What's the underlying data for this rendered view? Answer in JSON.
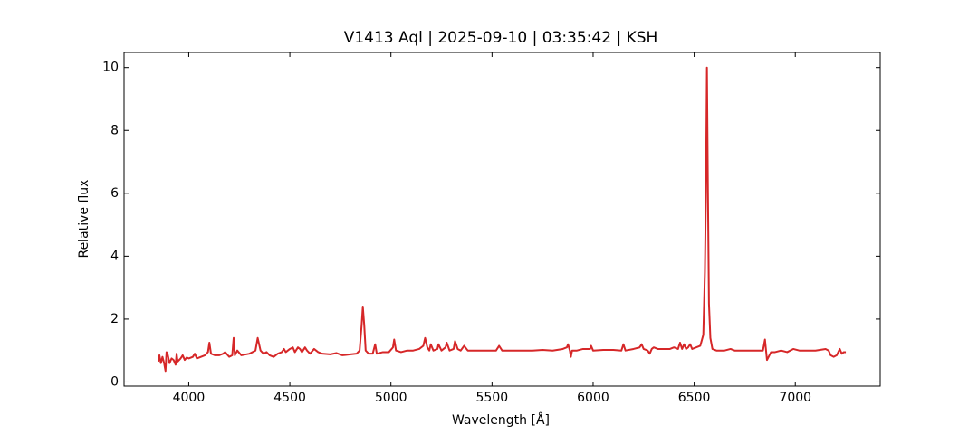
{
  "chart_data": {
    "type": "line",
    "title": "V1413 Aql | 2025-09-10 | 03:35:42 | KSH",
    "x_label": "Wavelength [Å]",
    "y_label": "Relative flux",
    "xlim": [
      3680,
      7420
    ],
    "ylim": [
      -0.13,
      10.48
    ],
    "xticks": [
      4000,
      4500,
      5000,
      5500,
      6000,
      6500,
      7000
    ],
    "yticks": [
      0,
      2,
      4,
      6,
      8,
      10
    ],
    "grid": false,
    "series": [
      {
        "color": "#d62728",
        "x": [
          3850,
          3855,
          3862,
          3870,
          3878,
          3885,
          3890,
          3895,
          3905,
          3915,
          3925,
          3935,
          3940,
          3945,
          3960,
          3970,
          3980,
          3990,
          4000,
          4020,
          4030,
          4040,
          4060,
          4080,
          4095,
          4102,
          4110,
          4130,
          4150,
          4170,
          4180,
          4200,
          4215,
          4222,
          4228,
          4240,
          4260,
          4300,
          4330,
          4341,
          4355,
          4370,
          4385,
          4400,
          4420,
          4440,
          4460,
          4471,
          4480,
          4500,
          4515,
          4525,
          4540,
          4550,
          4560,
          4575,
          4585,
          4600,
          4620,
          4640,
          4660,
          4700,
          4730,
          4760,
          4800,
          4830,
          4845,
          4855,
          4861,
          4868,
          4875,
          4890,
          4910,
          4922,
          4930,
          4960,
          4990,
          5010,
          5016,
          5025,
          5050,
          5080,
          5110,
          5140,
          5160,
          5169,
          5180,
          5190,
          5197,
          5210,
          5230,
          5235,
          5250,
          5270,
          5276,
          5290,
          5310,
          5317,
          5330,
          5345,
          5362,
          5380,
          5420,
          5460,
          5500,
          5520,
          5535,
          5550,
          5600,
          5650,
          5700,
          5750,
          5800,
          5850,
          5870,
          5876,
          5885,
          5890,
          5896,
          5920,
          5950,
          5985,
          5990,
          6000,
          6050,
          6100,
          6140,
          6150,
          6160,
          6200,
          6230,
          6240,
          6250,
          6270,
          6280,
          6290,
          6300,
          6320,
          6350,
          6380,
          6400,
          6420,
          6430,
          6440,
          6450,
          6460,
          6470,
          6480,
          6490,
          6510,
          6530,
          6545,
          6553,
          6558,
          6563,
          6568,
          6573,
          6580,
          6590,
          6610,
          6650,
          6680,
          6700,
          6750,
          6800,
          6840,
          6850,
          6860,
          6868,
          6880,
          6900,
          6930,
          6960,
          6990,
          7020,
          7050,
          7100,
          7150,
          7165,
          7175,
          7190,
          7205,
          7220,
          7230,
          7240,
          7250
        ],
        "values": [
          0.65,
          0.85,
          0.6,
          0.8,
          0.6,
          0.35,
          0.95,
          0.9,
          0.6,
          0.75,
          0.7,
          0.55,
          0.9,
          0.65,
          0.75,
          0.85,
          0.7,
          0.78,
          0.75,
          0.8,
          0.9,
          0.75,
          0.8,
          0.85,
          0.95,
          1.25,
          0.9,
          0.85,
          0.85,
          0.9,
          0.95,
          0.8,
          0.85,
          1.4,
          0.85,
          1.0,
          0.85,
          0.9,
          1.0,
          1.4,
          1.0,
          0.9,
          0.95,
          0.85,
          0.8,
          0.9,
          0.95,
          1.05,
          0.95,
          1.05,
          1.1,
          0.95,
          1.1,
          1.05,
          0.95,
          1.1,
          1.0,
          0.9,
          1.05,
          0.95,
          0.9,
          0.88,
          0.92,
          0.85,
          0.88,
          0.9,
          1.0,
          1.8,
          2.4,
          1.8,
          1.0,
          0.9,
          0.9,
          1.2,
          0.9,
          0.95,
          0.95,
          1.1,
          1.35,
          1.0,
          0.95,
          1.0,
          1.0,
          1.05,
          1.15,
          1.4,
          1.1,
          1.0,
          1.2,
          1.0,
          1.05,
          1.2,
          1.0,
          1.1,
          1.25,
          1.0,
          1.05,
          1.3,
          1.05,
          1.0,
          1.15,
          1.0,
          1.0,
          1.0,
          1.0,
          1.0,
          1.15,
          1.0,
          1.0,
          1.0,
          1.0,
          1.02,
          1.0,
          1.05,
          1.1,
          1.2,
          1.0,
          0.8,
          1.0,
          1.0,
          1.05,
          1.05,
          1.15,
          1.0,
          1.02,
          1.02,
          1.0,
          1.2,
          1.0,
          1.05,
          1.1,
          1.2,
          1.05,
          1.0,
          0.9,
          1.05,
          1.1,
          1.05,
          1.05,
          1.05,
          1.1,
          1.05,
          1.25,
          1.05,
          1.2,
          1.05,
          1.1,
          1.2,
          1.05,
          1.1,
          1.15,
          1.5,
          3.5,
          6.0,
          10.0,
          6.0,
          2.5,
          1.4,
          1.05,
          1.0,
          1.0,
          1.05,
          1.0,
          1.0,
          1.0,
          1.0,
          1.35,
          0.7,
          0.8,
          0.95,
          0.95,
          1.0,
          0.95,
          1.05,
          1.0,
          1.0,
          1.0,
          1.05,
          1.0,
          0.85,
          0.8,
          0.85,
          1.05,
          0.9,
          0.95,
          0.95
        ]
      }
    ]
  }
}
